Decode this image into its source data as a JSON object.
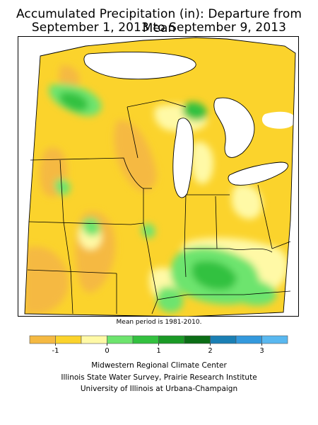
{
  "title": {
    "line1": "Accumulated Precipitation (in): Departure from Mean",
    "line2": "September 1, 2013 to September 9, 2013"
  },
  "note": "Mean period is 1981-2010.",
  "legend": {
    "colors": [
      "#f5b942",
      "#fbd32c",
      "#fff9a6",
      "#6de46e",
      "#33c13f",
      "#1a9a26",
      "#0b6e16",
      "#1a7fb4",
      "#3399dd",
      "#59b8f0"
    ],
    "tick_labels": [
      "-1",
      "0",
      "1",
      "2",
      "3"
    ]
  },
  "credits": [
    "Midwestern Regional Climate Center",
    "Illinois State Water Survey, Prairie Research Institute",
    "University of Illinois at Urbana-Champaign"
  ]
}
